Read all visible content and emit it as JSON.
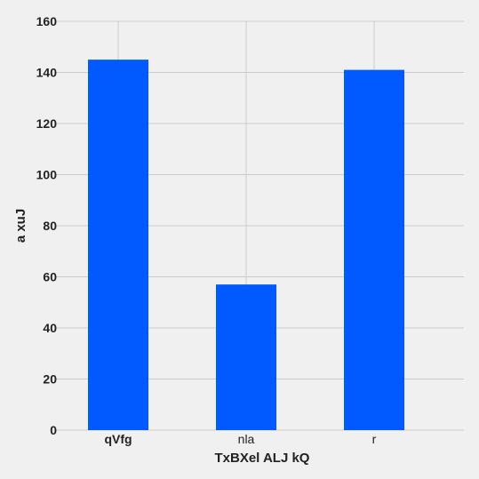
{
  "chart_data": {
    "type": "bar",
    "categories": [
      "qVfg",
      "nla",
      "r"
    ],
    "values": [
      145,
      57,
      141
    ],
    "xlabel": "TxBXel ALJ kQ",
    "ylabel": "a xuJ",
    "ylim": [
      0,
      160
    ],
    "yticks": [
      0,
      20,
      40,
      60,
      80,
      100,
      120,
      140,
      160
    ],
    "grid": true,
    "legend": "none",
    "colors": {
      "bar": "#005aff",
      "grid": "#cbcbcb",
      "background": "#f0f0f0"
    }
  }
}
